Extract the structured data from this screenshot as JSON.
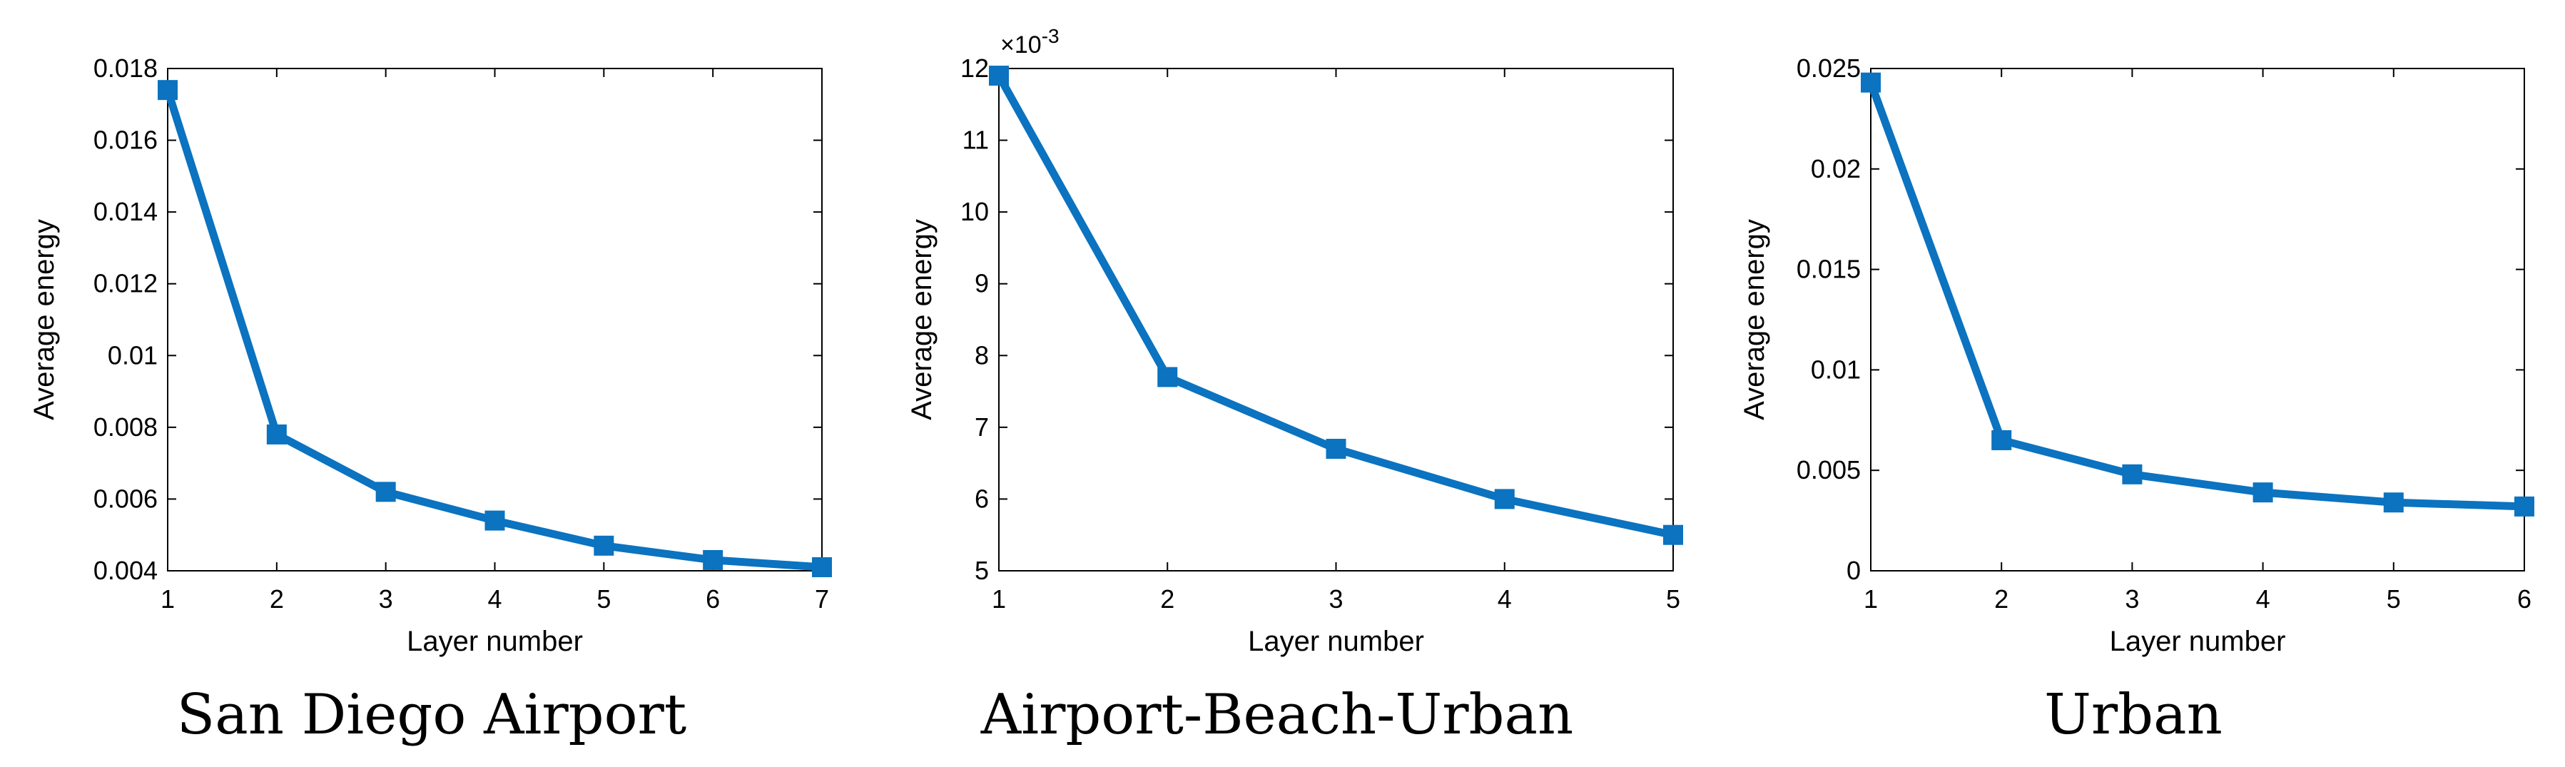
{
  "colors": {
    "series": "#0b73c0",
    "axes": "#000000",
    "background": "#ffffff"
  },
  "chart_data": [
    {
      "type": "line",
      "caption": "San Diego Airport",
      "xlabel": "Layer number",
      "ylabel": "Average energy",
      "exponent_label": "",
      "xlim": [
        1,
        7
      ],
      "ylim": [
        0.004,
        0.018
      ],
      "xticks": [
        1,
        2,
        3,
        4,
        5,
        6,
        7
      ],
      "xtick_labels": [
        "1",
        "2",
        "3",
        "4",
        "5",
        "6",
        "7"
      ],
      "yticks": [
        0.004,
        0.006,
        0.008,
        0.01,
        0.012,
        0.014,
        0.016,
        0.018
      ],
      "ytick_labels": [
        "0.004",
        "0.006",
        "0.008",
        "0.01",
        "0.012",
        "0.014",
        "0.016",
        "0.018"
      ],
      "grid": false,
      "marker": "square",
      "x": [
        1,
        2,
        3,
        4,
        5,
        6,
        7
      ],
      "y": [
        0.0174,
        0.0078,
        0.0062,
        0.0054,
        0.0047,
        0.0043,
        0.0041
      ]
    },
    {
      "type": "line",
      "caption": "Airport-Beach-Urban",
      "xlabel": "Layer number",
      "ylabel": "Average energy",
      "exponent_label": "×10-3",
      "xlim": [
        1,
        5
      ],
      "ylim": [
        5,
        12
      ],
      "xticks": [
        1,
        2,
        3,
        4,
        5
      ],
      "xtick_labels": [
        "1",
        "2",
        "3",
        "4",
        "5"
      ],
      "yticks": [
        5,
        6,
        7,
        8,
        9,
        10,
        11,
        12
      ],
      "ytick_labels": [
        "5",
        "6",
        "7",
        "8",
        "9",
        "10",
        "11",
        "12"
      ],
      "grid": false,
      "marker": "square",
      "x": [
        1,
        2,
        3,
        4,
        5
      ],
      "y": [
        11.9,
        7.7,
        6.7,
        6.0,
        5.5
      ]
    },
    {
      "type": "line",
      "caption": "Urban",
      "xlabel": "Layer number",
      "ylabel": "Average energy",
      "exponent_label": "",
      "xlim": [
        1,
        6
      ],
      "ylim": [
        0,
        0.025
      ],
      "xticks": [
        1,
        2,
        3,
        4,
        5,
        6
      ],
      "xtick_labels": [
        "1",
        "2",
        "3",
        "4",
        "5",
        "6"
      ],
      "yticks": [
        0,
        0.005,
        0.01,
        0.015,
        0.02,
        0.025
      ],
      "ytick_labels": [
        "0",
        "0.005",
        "0.01",
        "0.015",
        "0.02",
        "0.025"
      ],
      "grid": false,
      "marker": "square",
      "x": [
        1,
        2,
        3,
        4,
        5,
        6
      ],
      "y": [
        0.0243,
        0.0065,
        0.0048,
        0.0039,
        0.0034,
        0.0032
      ]
    }
  ]
}
